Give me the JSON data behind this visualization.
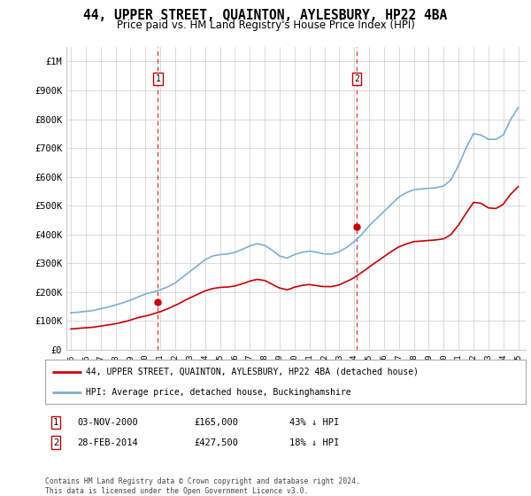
{
  "title": "44, UPPER STREET, QUAINTON, AYLESBURY, HP22 4BA",
  "subtitle": "Price paid vs. HM Land Registry's House Price Index (HPI)",
  "title_fontsize": 10.5,
  "subtitle_fontsize": 8.5,
  "background_color": "#ffffff",
  "plot_bg_color": "#ffffff",
  "grid_color": "#cccccc",
  "ylim": [
    0,
    1050000
  ],
  "yticks": [
    0,
    100000,
    200000,
    300000,
    400000,
    500000,
    600000,
    700000,
    800000,
    900000,
    1000000
  ],
  "ytick_labels": [
    "£0",
    "£100K",
    "£200K",
    "£300K",
    "£400K",
    "£500K",
    "£600K",
    "£700K",
    "£800K",
    "£900K",
    "£1M"
  ],
  "xlim_start": 1994.7,
  "xlim_end": 2025.5,
  "xticks": [
    1995,
    1996,
    1997,
    1998,
    1999,
    2000,
    2001,
    2002,
    2003,
    2004,
    2005,
    2006,
    2007,
    2008,
    2009,
    2010,
    2011,
    2012,
    2013,
    2014,
    2015,
    2016,
    2017,
    2018,
    2019,
    2020,
    2021,
    2022,
    2023,
    2024,
    2025
  ],
  "sale1_x": 2000.84,
  "sale1_y": 165000,
  "sale1_label": "1",
  "sale2_x": 2014.16,
  "sale2_y": 427500,
  "sale2_label": "2",
  "sale_color": "#cc0000",
  "vline_color": "#ee3333",
  "hpi_color": "#7bafd4",
  "property_line_color": "#cc0000",
  "legend_line1": "44, UPPER STREET, QUAINTON, AYLESBURY, HP22 4BA (detached house)",
  "legend_line2": "HPI: Average price, detached house, Buckinghamshire",
  "note1_label": "1",
  "note1_date": "03-NOV-2000",
  "note1_price": "£165,000",
  "note1_hpi": "43% ↓ HPI",
  "note2_label": "2",
  "note2_date": "28-FEB-2014",
  "note2_price": "£427,500",
  "note2_hpi": "18% ↓ HPI",
  "footer": "Contains HM Land Registry data © Crown copyright and database right 2024.\nThis data is licensed under the Open Government Licence v3.0.",
  "hpi_data_x": [
    1995.0,
    1995.25,
    1995.5,
    1995.75,
    1996.0,
    1996.25,
    1996.5,
    1996.75,
    1997.0,
    1997.25,
    1997.5,
    1997.75,
    1998.0,
    1998.25,
    1998.5,
    1998.75,
    1999.0,
    1999.25,
    1999.5,
    1999.75,
    2000.0,
    2000.25,
    2000.5,
    2000.75,
    2001.0,
    2001.25,
    2001.5,
    2001.75,
    2002.0,
    2002.25,
    2002.5,
    2002.75,
    2003.0,
    2003.25,
    2003.5,
    2003.75,
    2004.0,
    2004.25,
    2004.5,
    2004.75,
    2005.0,
    2005.25,
    2005.5,
    2005.75,
    2006.0,
    2006.25,
    2006.5,
    2006.75,
    2007.0,
    2007.25,
    2007.5,
    2007.75,
    2008.0,
    2008.25,
    2008.5,
    2008.75,
    2009.0,
    2009.25,
    2009.5,
    2009.75,
    2010.0,
    2010.25,
    2010.5,
    2010.75,
    2011.0,
    2011.25,
    2011.5,
    2011.75,
    2012.0,
    2012.25,
    2012.5,
    2012.75,
    2013.0,
    2013.25,
    2013.5,
    2013.75,
    2014.0,
    2014.25,
    2014.5,
    2014.75,
    2015.0,
    2015.25,
    2015.5,
    2015.75,
    2016.0,
    2016.25,
    2016.5,
    2016.75,
    2017.0,
    2017.25,
    2017.5,
    2017.75,
    2018.0,
    2018.25,
    2018.5,
    2018.75,
    2019.0,
    2019.25,
    2019.5,
    2019.75,
    2020.0,
    2020.25,
    2020.5,
    2020.75,
    2021.0,
    2021.25,
    2021.5,
    2021.75,
    2022.0,
    2022.25,
    2022.5,
    2022.75,
    2023.0,
    2023.25,
    2023.5,
    2023.75,
    2024.0,
    2024.25,
    2024.5,
    2024.75,
    2025.0
  ],
  "hpi_data_y": [
    128000,
    129000,
    130000,
    131500,
    133000,
    134500,
    136000,
    139000,
    142000,
    145000,
    148000,
    151500,
    155000,
    159000,
    163000,
    167500,
    172000,
    177500,
    183000,
    188000,
    193000,
    196500,
    200000,
    204000,
    208000,
    213000,
    218000,
    225000,
    232000,
    242000,
    252000,
    262000,
    272000,
    282000,
    292000,
    302000,
    312000,
    318500,
    325000,
    327500,
    330000,
    331000,
    332000,
    335000,
    338000,
    343000,
    348000,
    354000,
    360000,
    364000,
    368000,
    365000,
    362000,
    353500,
    345000,
    335000,
    325000,
    321500,
    318000,
    324000,
    330000,
    334000,
    338000,
    340000,
    342000,
    340000,
    338000,
    335000,
    332000,
    332000,
    332000,
    336000,
    340000,
    347500,
    355000,
    365000,
    375000,
    387500,
    400000,
    415000,
    430000,
    442500,
    455000,
    467500,
    480000,
    492500,
    505000,
    517500,
    530000,
    537500,
    545000,
    550000,
    555000,
    556500,
    558000,
    559000,
    560000,
    561000,
    562000,
    565000,
    568000,
    579000,
    590000,
    615000,
    640000,
    670000,
    700000,
    725000,
    750000,
    747500,
    745000,
    737500,
    730000,
    730000,
    730000,
    737500,
    745000,
    772500,
    800000,
    820000,
    840000
  ],
  "prop_data_x": [
    1995.0,
    1995.25,
    1995.5,
    1995.75,
    1996.0,
    1996.25,
    1996.5,
    1996.75,
    1997.0,
    1997.25,
    1997.5,
    1997.75,
    1998.0,
    1998.25,
    1998.5,
    1998.75,
    1999.0,
    1999.25,
    1999.5,
    1999.75,
    2000.0,
    2000.25,
    2000.5,
    2000.75,
    2001.0,
    2001.25,
    2001.5,
    2001.75,
    2002.0,
    2002.25,
    2002.5,
    2002.75,
    2003.0,
    2003.25,
    2003.5,
    2003.75,
    2004.0,
    2004.25,
    2004.5,
    2004.75,
    2005.0,
    2005.25,
    2005.5,
    2005.75,
    2006.0,
    2006.25,
    2006.5,
    2006.75,
    2007.0,
    2007.25,
    2007.5,
    2007.75,
    2008.0,
    2008.25,
    2008.5,
    2008.75,
    2009.0,
    2009.25,
    2009.5,
    2009.75,
    2010.0,
    2010.25,
    2010.5,
    2010.75,
    2011.0,
    2011.25,
    2011.5,
    2011.75,
    2012.0,
    2012.25,
    2012.5,
    2012.75,
    2013.0,
    2013.25,
    2013.5,
    2013.75,
    2014.0,
    2014.25,
    2014.5,
    2014.75,
    2015.0,
    2015.25,
    2015.5,
    2015.75,
    2016.0,
    2016.25,
    2016.5,
    2016.75,
    2017.0,
    2017.25,
    2017.5,
    2017.75,
    2018.0,
    2018.25,
    2018.5,
    2018.75,
    2019.0,
    2019.25,
    2019.5,
    2019.75,
    2020.0,
    2020.25,
    2020.5,
    2020.75,
    2021.0,
    2021.25,
    2021.5,
    2021.75,
    2022.0,
    2022.25,
    2022.5,
    2022.75,
    2023.0,
    2023.25,
    2023.5,
    2023.75,
    2024.0,
    2024.25,
    2024.5,
    2024.75,
    2025.0
  ],
  "prop_data_y": [
    72000,
    73000,
    74000,
    75000,
    76000,
    77000,
    78000,
    80000,
    82000,
    84000,
    86000,
    88000,
    90000,
    93000,
    96000,
    99000,
    103000,
    107000,
    111000,
    114000,
    117000,
    120000,
    124000,
    128000,
    132000,
    137000,
    142000,
    148000,
    154000,
    160000,
    167000,
    174000,
    180000,
    186000,
    192000,
    198000,
    204000,
    208000,
    212000,
    214000,
    216000,
    217000,
    217500,
    219000,
    221000,
    225000,
    229000,
    233000,
    238000,
    241000,
    244000,
    242000,
    240000,
    234000,
    227000,
    220000,
    214000,
    211000,
    208000,
    212000,
    217000,
    220000,
    223000,
    225000,
    226000,
    224000,
    222000,
    220000,
    219000,
    219000,
    219000,
    222000,
    225000,
    231000,
    237000,
    243000,
    250000,
    259000,
    268000,
    277000,
    287000,
    296000,
    305000,
    314000,
    323000,
    332000,
    341000,
    349000,
    357000,
    362000,
    367000,
    371000,
    375000,
    376000,
    377000,
    378000,
    379000,
    380000,
    381000,
    383000,
    385000,
    392000,
    400000,
    417000,
    433000,
    453000,
    473000,
    492000,
    511000,
    510000,
    508000,
    500000,
    492000,
    491000,
    490000,
    497000,
    505000,
    523000,
    540000,
    553000,
    566000
  ]
}
